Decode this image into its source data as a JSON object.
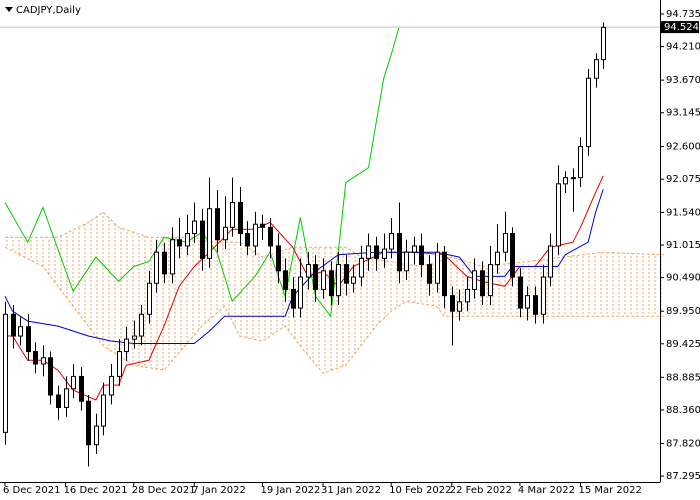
{
  "chart_data": {
    "type": "candlestick",
    "title": "CADJPY,Daily",
    "ylim": [
      87.2,
      94.96
    ],
    "yticks": [
      94.735,
      {
        "value": 94.21,
        "label": "94.210"
      },
      {
        "value": 93.67,
        "label": "93.670"
      },
      93.145,
      {
        "value": 92.6,
        "label": "92.600"
      },
      92.075,
      {
        "value": 91.54,
        "label": "91.540"
      },
      91.015,
      {
        "value": 90.49,
        "label": "90.490"
      },
      {
        "value": 89.95,
        "label": "89.950"
      },
      89.425,
      88.885,
      {
        "value": 88.36,
        "label": "88.360"
      },
      {
        "value": 87.82,
        "label": "87.820"
      },
      87.295
    ],
    "xlim": [
      -0.66,
      86.5
    ],
    "xticks": [
      {
        "value": 0,
        "label": "6 Dec 2021"
      },
      {
        "value": 8,
        "label": "16 Dec 2021"
      },
      {
        "value": 17,
        "label": "28 Dec 2021"
      },
      {
        "value": 25,
        "label": "7 Jan 2022"
      },
      {
        "value": 34,
        "label": "19 Jan 2022"
      },
      {
        "value": 42,
        "label": "31 Jan 2022"
      },
      {
        "value": 51,
        "label": "10 Feb 2022"
      },
      {
        "value": 59,
        "label": "22 Feb 2022"
      },
      {
        "value": 68,
        "label": "4 Mar 2022"
      },
      {
        "value": 76,
        "label": "15 Mar 2022"
      }
    ],
    "current_price": 94.524,
    "up_color": "#ffffff",
    "down_color": "#000000",
    "open": [
      88.0,
      89.9,
      89.55,
      89.7,
      89.3,
      89.1,
      89.2,
      88.6,
      88.4,
      88.7,
      88.9,
      88.5,
      87.8,
      88.1,
      88.6,
      88.9,
      89.3,
      89.5,
      89.55,
      89.9,
      90.4,
      90.9,
      90.55,
      91.1,
      91.0,
      91.2,
      91.4,
      90.8,
      91.6,
      91.1,
      91.3,
      91.7,
      91.2,
      91.0,
      91.35,
      91.3,
      91.0,
      90.6,
      90.3,
      90.0,
      90.5,
      90.7,
      90.3,
      90.6,
      90.2,
      90.7,
      90.4,
      90.5,
      90.8,
      91.0,
      90.8,
      90.95,
      91.2,
      90.6,
      90.9,
      91.0,
      90.7,
      90.4,
      90.9,
      90.2,
      89.95,
      90.1,
      90.3,
      90.6,
      90.2,
      90.7,
      90.9,
      91.2,
      90.5,
      90.0,
      90.2,
      89.9,
      90.5,
      91.0,
      92.0,
      92.1,
      92.1,
      92.6,
      93.7,
      94.0
    ],
    "high": [
      90.1,
      90.05,
      89.85,
      89.9,
      89.45,
      89.4,
      89.3,
      88.75,
      88.9,
      89.1,
      89.05,
      88.6,
      88.3,
      88.8,
      89.1,
      89.5,
      89.7,
      89.8,
      90.05,
      90.6,
      91.1,
      91.05,
      91.3,
      91.45,
      91.5,
      91.7,
      91.6,
      92.1,
      91.9,
      91.8,
      92.1,
      91.95,
      91.4,
      91.55,
      91.5,
      91.45,
      91.2,
      90.8,
      90.5,
      90.8,
      90.9,
      90.85,
      90.8,
      90.75,
      90.9,
      90.85,
      90.7,
      91.0,
      91.2,
      91.15,
      91.2,
      91.45,
      91.7,
      91.1,
      91.15,
      91.2,
      90.85,
      91.05,
      91.0,
      90.35,
      90.3,
      90.5,
      90.8,
      90.75,
      91.0,
      91.35,
      91.55,
      91.3,
      90.65,
      90.35,
      90.35,
      90.7,
      91.2,
      92.3,
      92.2,
      92.25,
      92.75,
      93.85,
      94.1,
      94.6
    ],
    "low": [
      87.8,
      89.35,
      89.4,
      89.15,
      88.95,
      88.9,
      88.45,
      88.2,
      88.25,
      88.55,
      88.35,
      87.45,
      87.65,
      87.95,
      88.45,
      88.75,
      89.15,
      89.35,
      89.4,
      89.75,
      90.25,
      90.4,
      90.4,
      90.8,
      90.85,
      91.05,
      90.6,
      90.65,
      90.9,
      90.95,
      91.15,
      91.0,
      90.85,
      90.85,
      91.1,
      90.8,
      90.4,
      90.1,
      89.85,
      89.85,
      90.3,
      90.1,
      90.15,
      90.05,
      90.05,
      90.2,
      90.25,
      90.35,
      90.6,
      90.6,
      90.65,
      90.8,
      90.4,
      90.45,
      90.7,
      90.5,
      90.2,
      90.25,
      90.0,
      89.4,
      89.8,
      89.95,
      90.15,
      90.05,
      90.05,
      90.55,
      90.75,
      90.35,
      89.85,
      89.8,
      89.75,
      89.75,
      90.35,
      90.85,
      91.85,
      91.55,
      91.95,
      92.45,
      93.55,
      93.85
    ],
    "close": [
      89.9,
      89.55,
      89.7,
      89.3,
      89.1,
      89.2,
      88.6,
      88.4,
      88.7,
      88.9,
      88.5,
      87.8,
      88.1,
      88.6,
      88.9,
      89.3,
      89.5,
      89.55,
      89.9,
      90.4,
      90.9,
      90.55,
      91.1,
      91.0,
      91.2,
      91.4,
      90.8,
      91.6,
      91.1,
      91.3,
      91.7,
      91.2,
      91.0,
      91.35,
      91.3,
      91.0,
      90.6,
      90.3,
      90.0,
      90.5,
      90.7,
      90.3,
      90.6,
      90.2,
      90.7,
      90.4,
      90.5,
      90.8,
      91.0,
      90.8,
      90.95,
      91.2,
      90.6,
      90.9,
      91.0,
      90.7,
      90.4,
      90.9,
      90.2,
      89.95,
      90.1,
      90.3,
      90.6,
      90.2,
      90.7,
      90.9,
      91.2,
      90.5,
      90.0,
      90.2,
      89.9,
      90.5,
      91.0,
      92.0,
      92.1,
      92.1,
      92.6,
      93.7,
      94.0,
      94.52
    ],
    "cloud": {
      "color": "#f4a460",
      "upper": {
        "x": [
          0,
          7,
          11,
          13,
          15,
          19,
          25,
          27,
          31,
          34,
          38,
          45,
          47,
          55,
          59,
          63,
          69,
          79,
          87
        ],
        "values": [
          91.14,
          91.14,
          91.38,
          91.54,
          91.3,
          91.14,
          91.14,
          91.06,
          91.06,
          90.82,
          90.98,
          90.98,
          90.82,
          90.67,
          90.82,
          90.67,
          90.75,
          90.9,
          90.86
        ]
      },
      "lower": {
        "x": [
          0,
          5,
          10,
          13,
          17,
          21,
          26,
          29,
          31,
          34,
          37,
          39,
          42,
          45,
          49,
          51,
          53,
          57,
          58,
          87
        ],
        "values": [
          90.98,
          90.67,
          89.87,
          89.39,
          89.08,
          89.0,
          89.71,
          90.03,
          89.55,
          89.47,
          89.71,
          89.39,
          88.95,
          89.08,
          89.71,
          89.95,
          90.11,
          90.03,
          89.87,
          89.87
        ]
      }
    },
    "lines": [
      {
        "color": "#00cc00",
        "x": [
          0,
          3,
          5,
          9,
          12,
          15,
          17,
          19,
          21,
          24,
          26,
          28,
          30,
          33,
          35,
          37,
          39,
          41,
          43,
          44,
          45,
          48,
          50,
          51,
          52
        ],
        "values": [
          91.7,
          91.06,
          91.62,
          90.27,
          90.82,
          90.43,
          90.67,
          90.75,
          91.14,
          91.06,
          91.22,
          90.9,
          90.11,
          90.51,
          90.9,
          90.19,
          91.46,
          90.19,
          89.87,
          90.9,
          92.02,
          92.26,
          93.69,
          94.08,
          94.51
        ]
      },
      {
        "color": "#e00000",
        "x": [
          0,
          1,
          3,
          5,
          7,
          9,
          12,
          13,
          15,
          16,
          19,
          21,
          23,
          25,
          27,
          30,
          33,
          35,
          38,
          40,
          42,
          44,
          46,
          50,
          54,
          58,
          61,
          63,
          66,
          68,
          70,
          72,
          75,
          76,
          78,
          79
        ],
        "values": [
          89.55,
          89.55,
          89.16,
          89.16,
          89.0,
          88.68,
          88.52,
          88.76,
          88.76,
          89.08,
          89.16,
          89.71,
          90.35,
          90.67,
          90.9,
          91.27,
          91.27,
          91.38,
          90.98,
          90.51,
          90.59,
          90.35,
          90.67,
          90.9,
          90.9,
          90.86,
          90.51,
          90.43,
          90.35,
          90.67,
          90.67,
          90.98,
          91.06,
          91.3,
          91.86,
          92.13
        ]
      },
      {
        "color": "#0000cc",
        "x": [
          0,
          1,
          3,
          7,
          11,
          14,
          17,
          19,
          25,
          27,
          29,
          37,
          38,
          41,
          44,
          49,
          57,
          60,
          62,
          66,
          67,
          73,
          74,
          77,
          78,
          79
        ],
        "values": [
          90.19,
          89.95,
          89.79,
          89.71,
          89.55,
          89.47,
          89.43,
          89.43,
          89.43,
          89.63,
          89.87,
          89.87,
          90.19,
          90.59,
          90.86,
          90.9,
          90.9,
          90.82,
          90.51,
          90.51,
          90.67,
          90.67,
          90.86,
          91.06,
          91.54,
          91.91
        ]
      }
    ]
  }
}
